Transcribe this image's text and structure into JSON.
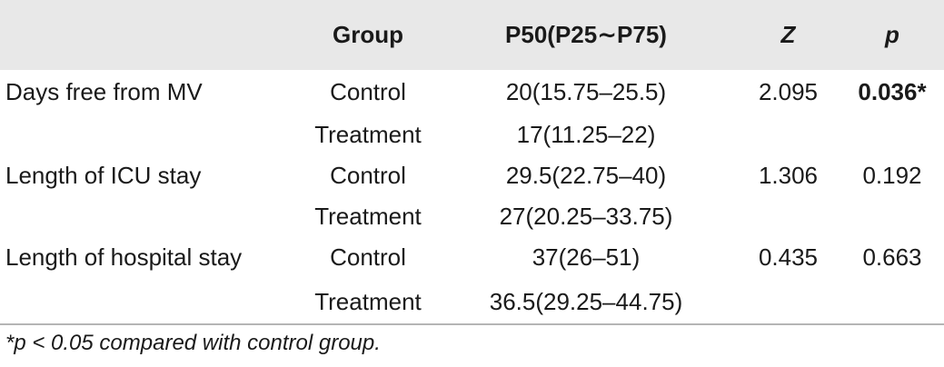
{
  "table": {
    "headers": {
      "outcome": "",
      "group": "Group",
      "median": "P50(P25∼P75)",
      "z": "Z",
      "p": "p"
    },
    "rows": [
      {
        "outcome": "Days free from MV",
        "group": "Control",
        "median": "20(15.75–25.5)",
        "z": "2.095",
        "p": "0.036*"
      },
      {
        "outcome": "",
        "group": "Treatment",
        "median": "17(11.25–22)",
        "z": "",
        "p": ""
      },
      {
        "outcome": "Length of ICU stay",
        "group": "Control",
        "median": "29.5(22.75–40)",
        "z": "1.306",
        "p": "0.192"
      },
      {
        "outcome": "",
        "group": "Treatment",
        "median": "27(20.25–33.75)",
        "z": "",
        "p": ""
      },
      {
        "outcome": "Length of hospital stay",
        "group": "Control",
        "median": "37(26–51)",
        "z": "0.435",
        "p": "0.663"
      },
      {
        "outcome": "",
        "group": "Treatment",
        "median": "36.5(29.25–44.75)",
        "z": "",
        "p": ""
      }
    ],
    "footnote": "*p < 0.05 compared with control group."
  }
}
